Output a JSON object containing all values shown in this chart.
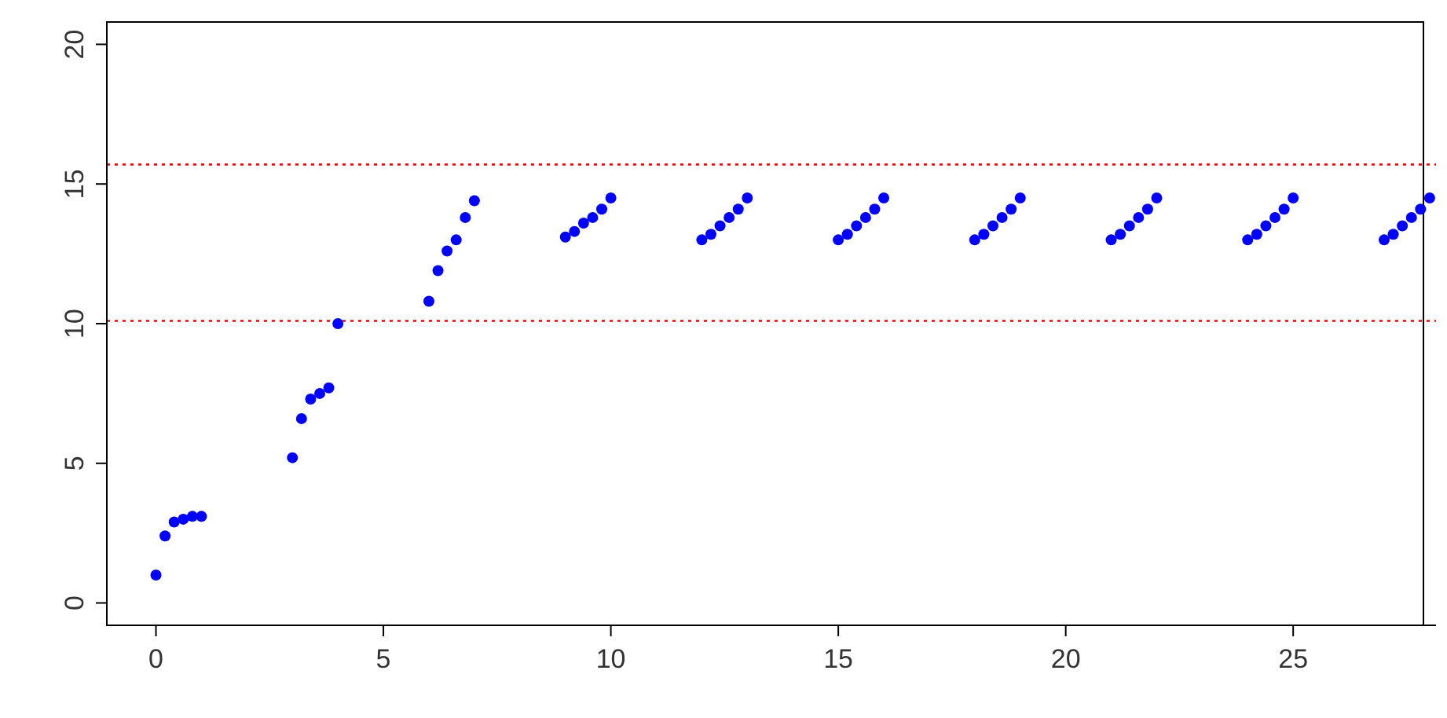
{
  "chart_data": {
    "type": "scatter",
    "marker": "circle",
    "grid": false,
    "legend": false,
    "x": [
      0,
      0.2,
      0.4,
      0.6,
      0.8,
      1,
      3,
      3.2,
      3.4,
      3.6,
      3.8,
      4,
      6,
      6.2,
      6.4,
      6.6,
      6.8,
      7,
      9,
      9.2,
      9.4,
      9.6,
      9.8,
      10,
      12,
      12.2,
      12.4,
      12.6,
      12.8,
      13,
      15,
      15.2,
      15.4,
      15.6,
      15.8,
      16,
      18,
      18.2,
      18.4,
      18.6,
      18.8,
      19,
      21,
      21.2,
      21.4,
      21.6,
      21.8,
      22,
      24,
      24.2,
      24.4,
      24.6,
      24.8,
      25,
      27,
      27.2,
      27.4,
      27.6,
      27.8,
      28
    ],
    "series": [
      {
        "color": "#0000ff",
        "values": [
          1.0,
          2.4,
          2.9,
          3.0,
          3.1,
          3.1,
          5.2,
          6.6,
          7.3,
          7.5,
          7.7,
          10.0,
          10.8,
          11.9,
          12.6,
          13.0,
          13.8,
          14.4,
          13.1,
          13.3,
          13.6,
          13.8,
          14.1,
          14.5,
          13.0,
          13.2,
          13.5,
          13.8,
          14.1,
          14.5,
          13.0,
          13.2,
          13.5,
          13.8,
          14.1,
          14.5,
          13.0,
          13.2,
          13.5,
          13.8,
          14.1,
          14.5,
          13.0,
          13.2,
          13.5,
          13.8,
          14.1,
          14.5,
          13.0,
          13.2,
          13.5,
          13.8,
          14.1,
          14.5,
          13.0,
          13.2,
          13.5,
          13.8,
          14.1,
          14.5
        ]
      }
    ],
    "xlim": [
      -1.08,
      28.14
    ],
    "xticks": [
      0,
      5,
      10,
      15,
      20,
      25
    ],
    "ylim": [
      -0.8,
      20.8
    ],
    "yticks": [
      0,
      5,
      10,
      15,
      20
    ],
    "ref_lines": [
      {
        "axis": "y",
        "value": 15.7,
        "color": "#ff0000",
        "line_style": "dotted"
      },
      {
        "axis": "y",
        "value": 10.1,
        "color": "#ff0000",
        "line_style": "dotted"
      }
    ]
  }
}
